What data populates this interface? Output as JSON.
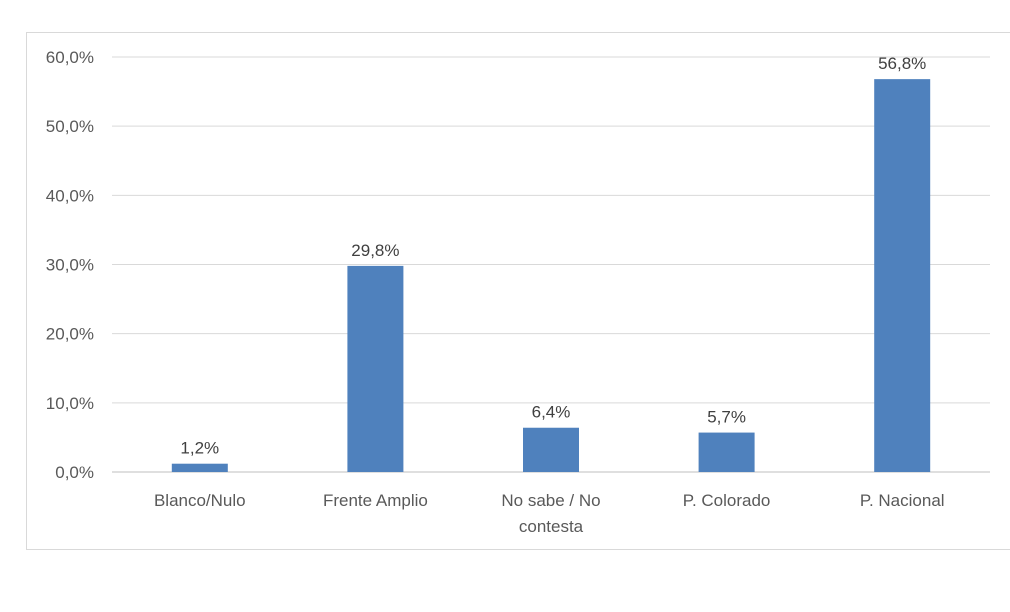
{
  "chart_data": {
    "type": "bar",
    "categories": [
      "Blanco/Nulo",
      "Frente Amplio",
      "No sabe / No contesta",
      "P. Colorado",
      "P. Nacional"
    ],
    "category_lines": [
      [
        "Blanco/Nulo"
      ],
      [
        "Frente Amplio"
      ],
      [
        "No sabe / No",
        "contesta"
      ],
      [
        "P. Colorado"
      ],
      [
        "P. Nacional"
      ]
    ],
    "values": [
      1.2,
      29.8,
      6.4,
      5.7,
      56.8
    ],
    "data_labels": [
      "1,2%",
      "29,8%",
      "6,4%",
      "5,7%",
      "56,8%"
    ],
    "ylim": [
      0,
      60
    ],
    "yticks": [
      0,
      10,
      20,
      30,
      40,
      50,
      60
    ],
    "ytick_labels": [
      "0,0%",
      "10,0%",
      "20,0%",
      "30,0%",
      "40,0%",
      "50,0%",
      "60,0%"
    ],
    "title": "",
    "xlabel": "",
    "ylabel": "",
    "grid": true,
    "legend": "none",
    "bar_color": "#4f81bd",
    "grid_color": "#d9d9d9"
  }
}
